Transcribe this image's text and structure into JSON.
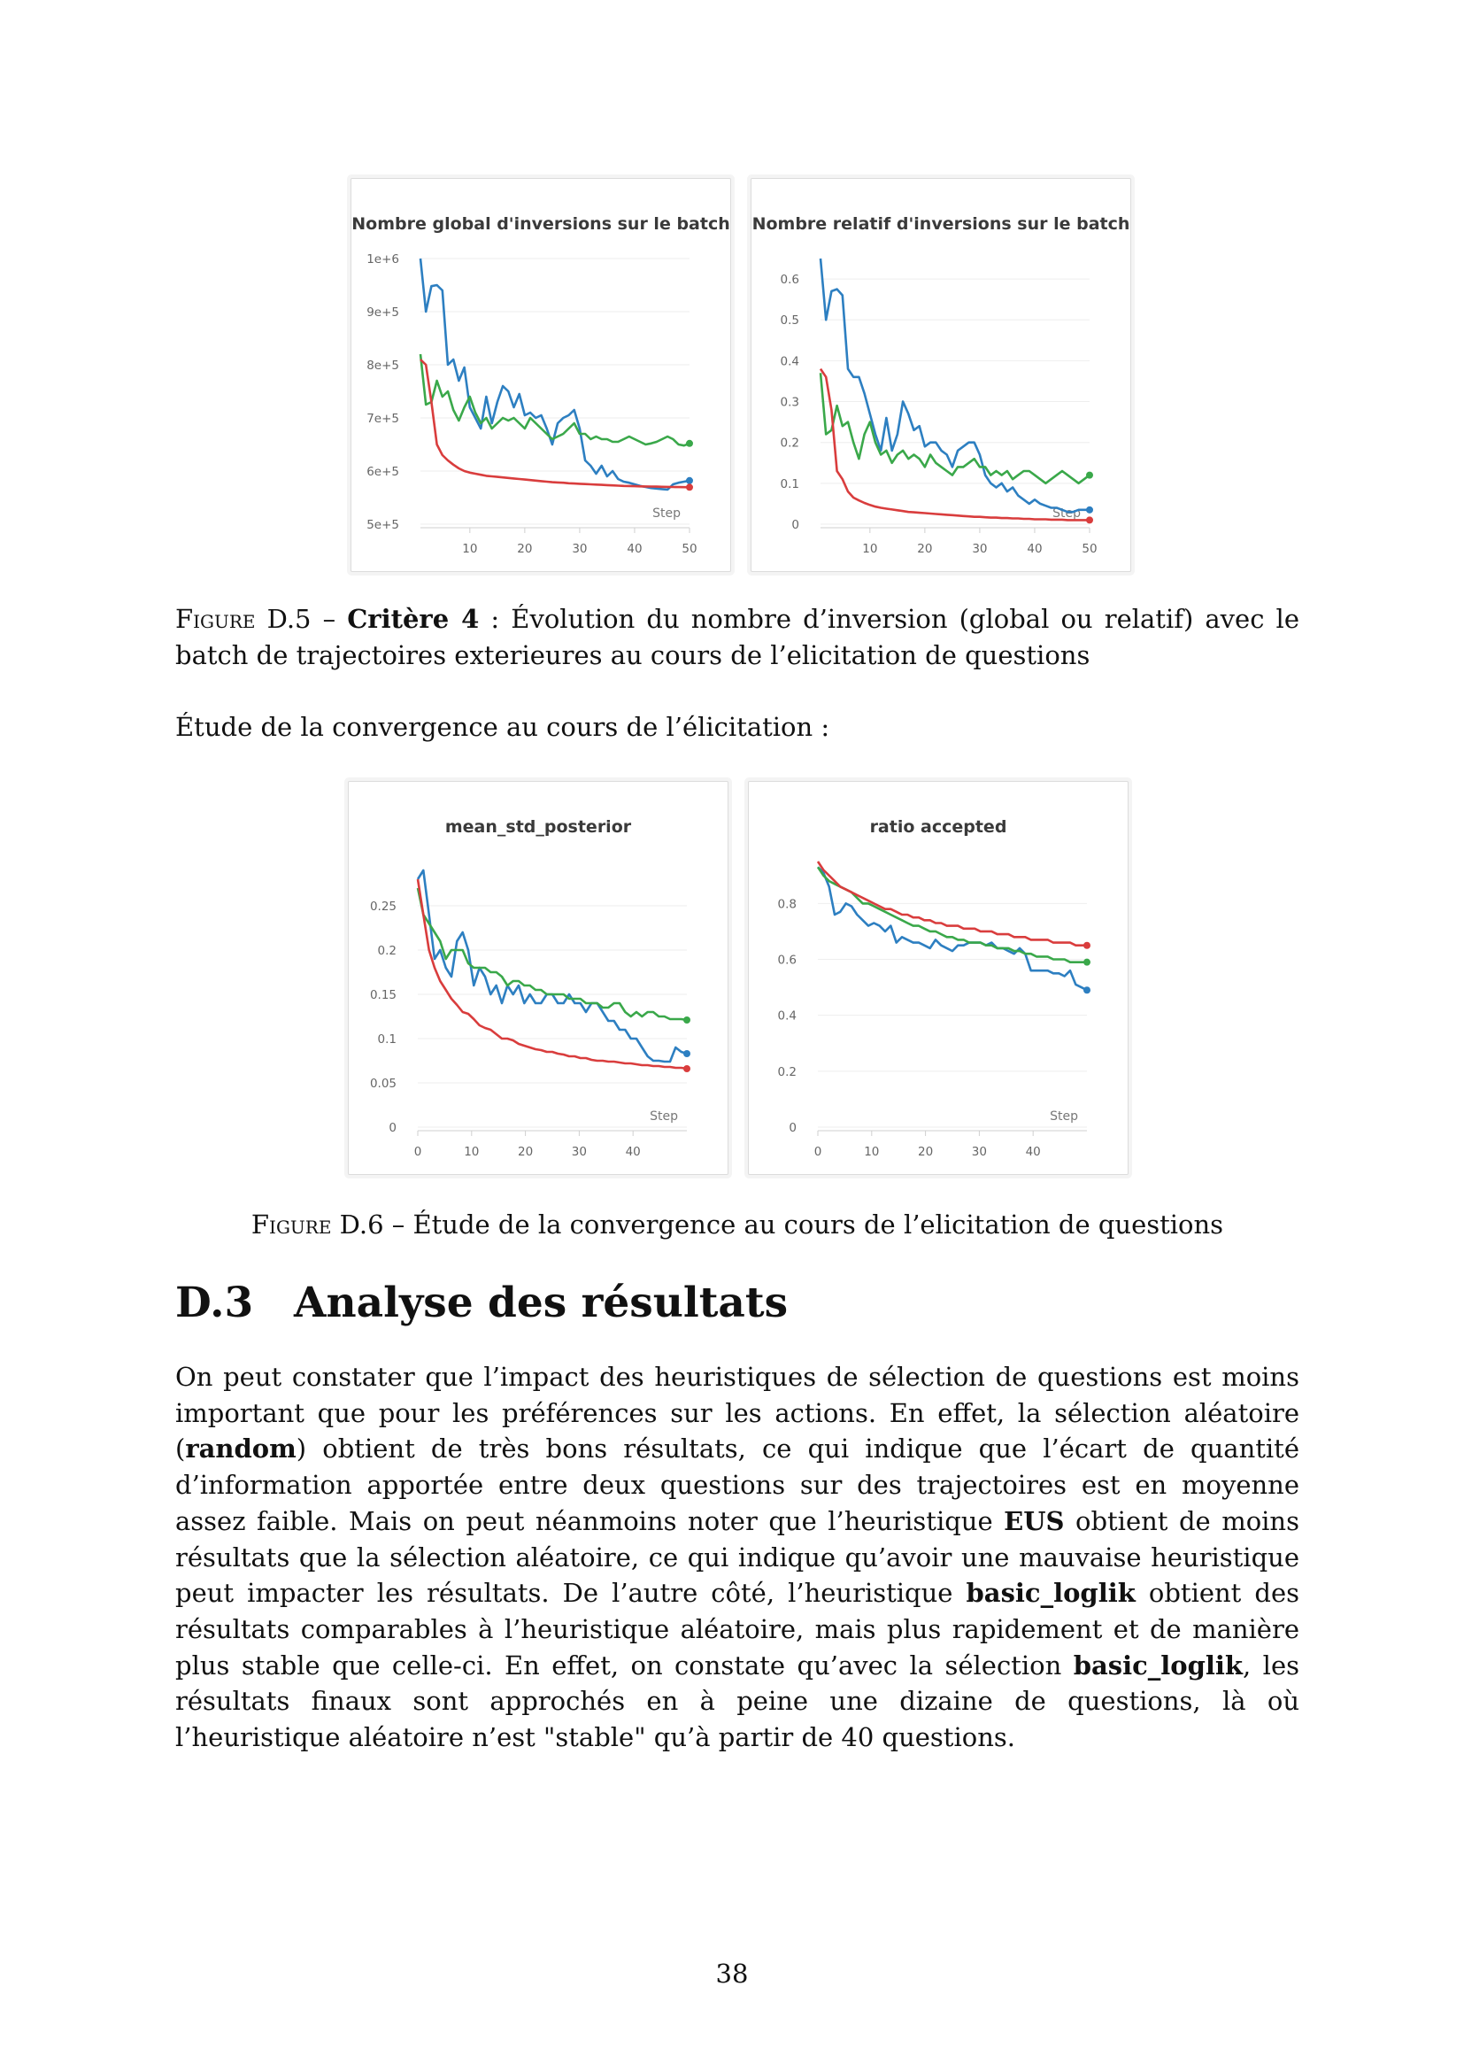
{
  "series_colors": {
    "blue": "#2d7fc1",
    "green": "#3aa84a",
    "red": "#d93d3d"
  },
  "figure_d5": {
    "caption": {
      "label": "Figure D.5",
      "dash": " – ",
      "bold": "Critère 4",
      "rest": " : Évolution du nombre d’inversion (global ou relatif) avec le batch de trajectoires exterieures au cours de l’elicitation de questions"
    }
  },
  "intro_text": "Étude de la convergence au cours de l’élicitation :",
  "figure_d6": {
    "caption": {
      "label": "Figure D.6",
      "dash": " – ",
      "rest": "Étude de la convergence au cours de l’elicitation de questions"
    }
  },
  "section": {
    "number": "D.3",
    "title": "Analyse des résultats",
    "paragraph": [
      {
        "t": "On peut constater que l’impact des heuristiques de sélection de questions est moins important que pour les préférences sur les actions. En effet, la sélection aléatoire ("
      },
      {
        "b": "random"
      },
      {
        "t": ") obtient de très bons résultats, ce qui indique que l’écart de quantité d’information apportée entre deux questions sur des trajectoires est en moyenne assez faible. Mais on peut néanmoins noter que l’heuristique "
      },
      {
        "b": "EUS"
      },
      {
        "t": " obtient de moins résultats que la sélection aléatoire, ce qui indique qu’avoir une mauvaise heuristique peut impacter les résultats. De l’autre côté, l’heuristique "
      },
      {
        "b": "basic_loglik"
      },
      {
        "t": " obtient des résultats comparables à l’heuristique aléatoire, mais plus rapidement et de manière plus stable que celle-ci. En effet, on constate qu’avec la sélection "
      },
      {
        "b": "basic_loglik"
      },
      {
        "t": ", les résultats finaux sont approchés en à peine une dizaine de questions, là où l’heuristique aléatoire n’est \"stable\" qu’à partir de 40 questions."
      }
    ]
  },
  "page_number": "38",
  "chart_data": [
    {
      "type": "line",
      "title": "Nombre global d'inversions sur le batch",
      "xlabel": "Step",
      "xlim": [
        1,
        50
      ],
      "ylim": [
        500000,
        1000000
      ],
      "xticks": [
        10,
        20,
        30,
        40,
        50
      ],
      "yticks": [
        500000,
        600000,
        700000,
        800000,
        900000,
        1000000
      ],
      "ytick_labels": [
        "5e+5",
        "6e+5",
        "7e+5",
        "8e+5",
        "9e+5",
        "1e+6"
      ],
      "series": [
        {
          "color": "blue",
          "values": [
            1000000,
            900000,
            948000,
            950000,
            940000,
            800000,
            810000,
            770000,
            795000,
            720000,
            700000,
            680000,
            740000,
            690000,
            730000,
            760000,
            750000,
            720000,
            745000,
            705000,
            710000,
            700000,
            705000,
            680000,
            650000,
            690000,
            700000,
            705000,
            715000,
            680000,
            620000,
            610000,
            595000,
            610000,
            590000,
            600000,
            585000,
            580000,
            578000,
            575000,
            572000,
            570000,
            568000,
            567000,
            566000,
            565000,
            575000,
            578000,
            580000,
            582000
          ]
        },
        {
          "color": "green",
          "values": [
            820000,
            725000,
            730000,
            770000,
            740000,
            750000,
            715000,
            695000,
            720000,
            740000,
            710000,
            690000,
            700000,
            680000,
            690000,
            700000,
            695000,
            700000,
            690000,
            680000,
            700000,
            690000,
            680000,
            670000,
            660000,
            665000,
            670000,
            680000,
            690000,
            670000,
            670000,
            660000,
            665000,
            660000,
            660000,
            655000,
            655000,
            660000,
            665000,
            660000,
            655000,
            650000,
            652000,
            655000,
            660000,
            665000,
            660000,
            650000,
            648000,
            652000
          ]
        },
        {
          "color": "red",
          "values": [
            810000,
            800000,
            730000,
            650000,
            630000,
            620000,
            612000,
            605000,
            600000,
            597000,
            595000,
            593000,
            591000,
            590000,
            589000,
            588000,
            587000,
            586000,
            585000,
            584000,
            583000,
            582000,
            581000,
            580000,
            579000,
            578500,
            578000,
            577000,
            576500,
            576000,
            575500,
            575000,
            574500,
            574000,
            573500,
            573000,
            572500,
            572000,
            571800,
            571500,
            571200,
            571000,
            570800,
            570600,
            570400,
            570200,
            570000,
            569800,
            569600,
            569500
          ]
        }
      ]
    },
    {
      "type": "line",
      "title": "Nombre relatif d'inversions sur le batch",
      "xlabel": "Step",
      "xlim": [
        1,
        50
      ],
      "ylim": [
        0,
        0.65
      ],
      "xticks": [
        10,
        20,
        30,
        40,
        50
      ],
      "yticks": [
        0,
        0.1,
        0.2,
        0.3,
        0.4,
        0.5,
        0.6
      ],
      "ytick_labels": [
        "0",
        "0.1",
        "0.2",
        "0.3",
        "0.4",
        "0.5",
        "0.6"
      ],
      "series": [
        {
          "color": "blue",
          "values": [
            0.65,
            0.5,
            0.57,
            0.575,
            0.56,
            0.38,
            0.36,
            0.36,
            0.32,
            0.27,
            0.22,
            0.18,
            0.26,
            0.18,
            0.22,
            0.3,
            0.27,
            0.23,
            0.24,
            0.19,
            0.2,
            0.2,
            0.18,
            0.17,
            0.14,
            0.18,
            0.19,
            0.2,
            0.2,
            0.17,
            0.12,
            0.1,
            0.09,
            0.1,
            0.08,
            0.09,
            0.07,
            0.06,
            0.05,
            0.06,
            0.05,
            0.045,
            0.04,
            0.04,
            0.035,
            0.03,
            0.03,
            0.035,
            0.035,
            0.035
          ]
        },
        {
          "color": "green",
          "values": [
            0.37,
            0.22,
            0.23,
            0.29,
            0.24,
            0.25,
            0.2,
            0.16,
            0.22,
            0.25,
            0.2,
            0.17,
            0.18,
            0.15,
            0.17,
            0.18,
            0.16,
            0.17,
            0.16,
            0.14,
            0.17,
            0.15,
            0.14,
            0.13,
            0.12,
            0.14,
            0.14,
            0.15,
            0.16,
            0.14,
            0.14,
            0.12,
            0.13,
            0.12,
            0.13,
            0.11,
            0.12,
            0.13,
            0.13,
            0.12,
            0.11,
            0.1,
            0.11,
            0.12,
            0.13,
            0.12,
            0.11,
            0.1,
            0.11,
            0.12
          ]
        },
        {
          "color": "red",
          "values": [
            0.38,
            0.36,
            0.28,
            0.13,
            0.11,
            0.08,
            0.065,
            0.058,
            0.052,
            0.047,
            0.043,
            0.04,
            0.038,
            0.036,
            0.034,
            0.032,
            0.03,
            0.029,
            0.028,
            0.027,
            0.026,
            0.025,
            0.024,
            0.023,
            0.022,
            0.021,
            0.02,
            0.019,
            0.018,
            0.018,
            0.017,
            0.016,
            0.016,
            0.015,
            0.015,
            0.014,
            0.014,
            0.013,
            0.013,
            0.012,
            0.012,
            0.012,
            0.011,
            0.011,
            0.011,
            0.01,
            0.01,
            0.01,
            0.01,
            0.01
          ]
        }
      ]
    },
    {
      "type": "line",
      "title": "mean_std_posterior",
      "xlabel": "Step",
      "xlim": [
        0,
        50
      ],
      "ylim": [
        0,
        0.3
      ],
      "xticks": [
        0,
        10,
        20,
        30,
        40
      ],
      "yticks": [
        0,
        0.05,
        0.1,
        0.15,
        0.2,
        0.25
      ],
      "ytick_labels": [
        "0",
        "0.05",
        "0.1",
        "0.15",
        "0.2",
        "0.25"
      ],
      "series": [
        {
          "color": "blue",
          "values": [
            0.28,
            0.29,
            0.24,
            0.19,
            0.2,
            0.18,
            0.17,
            0.21,
            0.22,
            0.2,
            0.16,
            0.18,
            0.17,
            0.15,
            0.16,
            0.14,
            0.16,
            0.15,
            0.16,
            0.14,
            0.15,
            0.14,
            0.14,
            0.15,
            0.15,
            0.14,
            0.14,
            0.15,
            0.14,
            0.14,
            0.13,
            0.14,
            0.14,
            0.13,
            0.12,
            0.12,
            0.11,
            0.11,
            0.1,
            0.1,
            0.09,
            0.08,
            0.075,
            0.075,
            0.074,
            0.074,
            0.09,
            0.085,
            0.083
          ]
        },
        {
          "color": "green",
          "values": [
            0.27,
            0.24,
            0.23,
            0.22,
            0.21,
            0.19,
            0.2,
            0.2,
            0.2,
            0.185,
            0.18,
            0.18,
            0.18,
            0.175,
            0.175,
            0.17,
            0.16,
            0.165,
            0.165,
            0.16,
            0.16,
            0.155,
            0.155,
            0.15,
            0.15,
            0.15,
            0.15,
            0.145,
            0.145,
            0.145,
            0.14,
            0.14,
            0.14,
            0.135,
            0.135,
            0.14,
            0.14,
            0.13,
            0.125,
            0.13,
            0.125,
            0.13,
            0.13,
            0.125,
            0.125,
            0.122,
            0.122,
            0.122,
            0.121
          ]
        },
        {
          "color": "red",
          "values": [
            0.28,
            0.24,
            0.2,
            0.18,
            0.165,
            0.155,
            0.145,
            0.138,
            0.13,
            0.128,
            0.122,
            0.115,
            0.112,
            0.11,
            0.105,
            0.1,
            0.1,
            0.098,
            0.094,
            0.092,
            0.09,
            0.088,
            0.087,
            0.085,
            0.085,
            0.083,
            0.082,
            0.08,
            0.08,
            0.078,
            0.078,
            0.076,
            0.075,
            0.075,
            0.074,
            0.074,
            0.073,
            0.072,
            0.072,
            0.071,
            0.07,
            0.07,
            0.069,
            0.069,
            0.068,
            0.068,
            0.067,
            0.067,
            0.066
          ]
        }
      ]
    },
    {
      "type": "line",
      "title": "ratio accepted",
      "xlabel": "Step",
      "xlim": [
        0,
        50
      ],
      "ylim": [
        0,
        0.95
      ],
      "xticks": [
        0,
        10,
        20,
        30,
        40
      ],
      "yticks": [
        0,
        0.2,
        0.4,
        0.6,
        0.8
      ],
      "ytick_labels": [
        "0",
        "0.2",
        "0.4",
        "0.6",
        "0.8"
      ],
      "series": [
        {
          "color": "blue",
          "values": [
            0.93,
            0.91,
            0.86,
            0.76,
            0.77,
            0.8,
            0.79,
            0.76,
            0.74,
            0.72,
            0.73,
            0.72,
            0.7,
            0.72,
            0.66,
            0.68,
            0.67,
            0.66,
            0.66,
            0.65,
            0.64,
            0.67,
            0.65,
            0.64,
            0.63,
            0.65,
            0.65,
            0.66,
            0.66,
            0.66,
            0.65,
            0.66,
            0.64,
            0.64,
            0.63,
            0.62,
            0.64,
            0.62,
            0.56,
            0.56,
            0.56,
            0.56,
            0.55,
            0.55,
            0.54,
            0.56,
            0.51,
            0.5,
            0.49
          ]
        },
        {
          "color": "green",
          "values": [
            0.93,
            0.9,
            0.88,
            0.87,
            0.86,
            0.85,
            0.84,
            0.82,
            0.8,
            0.8,
            0.79,
            0.78,
            0.77,
            0.76,
            0.75,
            0.74,
            0.73,
            0.72,
            0.72,
            0.71,
            0.7,
            0.7,
            0.69,
            0.68,
            0.68,
            0.67,
            0.67,
            0.66,
            0.66,
            0.66,
            0.65,
            0.65,
            0.64,
            0.64,
            0.64,
            0.63,
            0.63,
            0.62,
            0.62,
            0.61,
            0.61,
            0.61,
            0.6,
            0.6,
            0.6,
            0.59,
            0.59,
            0.59,
            0.59
          ]
        },
        {
          "color": "red",
          "values": [
            0.95,
            0.92,
            0.9,
            0.88,
            0.86,
            0.85,
            0.84,
            0.83,
            0.82,
            0.81,
            0.8,
            0.79,
            0.78,
            0.78,
            0.77,
            0.76,
            0.76,
            0.75,
            0.75,
            0.74,
            0.74,
            0.73,
            0.73,
            0.72,
            0.72,
            0.72,
            0.71,
            0.71,
            0.71,
            0.7,
            0.7,
            0.7,
            0.69,
            0.69,
            0.69,
            0.68,
            0.68,
            0.68,
            0.67,
            0.67,
            0.67,
            0.67,
            0.66,
            0.66,
            0.66,
            0.66,
            0.65,
            0.65,
            0.65
          ]
        }
      ]
    }
  ]
}
